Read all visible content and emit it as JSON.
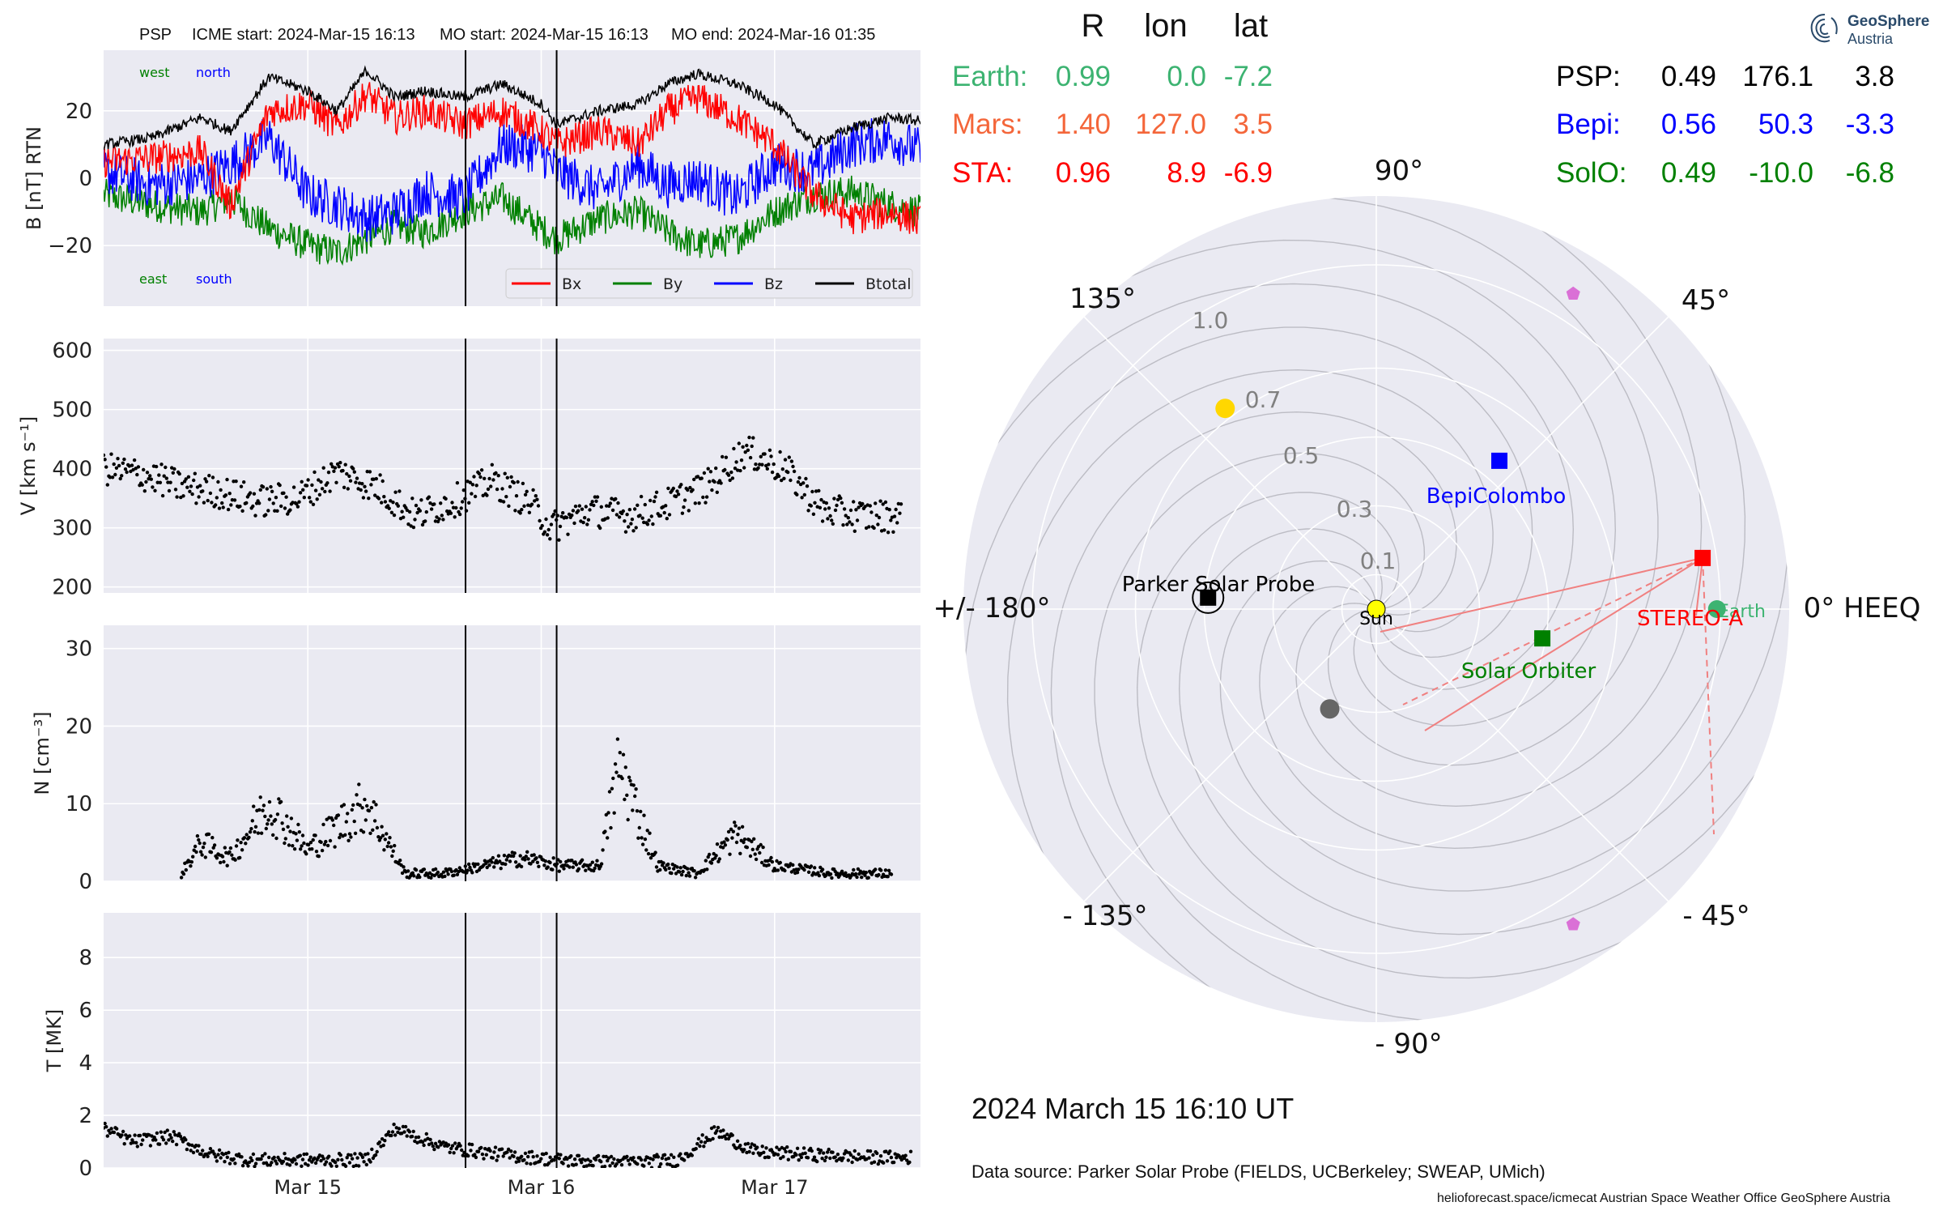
{
  "header": {
    "spacecraft": "PSP",
    "icme_start": "ICME start: 2024-Mar-15 16:13",
    "mo_start": "MO start: 2024-Mar-15 16:13",
    "mo_end": "MO end: 2024-Mar-16 01:35"
  },
  "table": {
    "columns": [
      "R",
      "lon",
      "lat"
    ],
    "rows_left": [
      {
        "name": "Earth:",
        "R": "0.99",
        "lon": "0.0",
        "lat": "-7.2",
        "color": "#3cb371"
      },
      {
        "name": "Mars:",
        "R": "1.40",
        "lon": "127.0",
        "lat": "3.5",
        "color": "#f4663a"
      },
      {
        "name": "STA:",
        "R": "0.96",
        "lon": "8.9",
        "lat": "-6.9",
        "color": "#ff0000"
      }
    ],
    "rows_right": [
      {
        "name": "PSP:",
        "R": "0.49",
        "lon": "176.1",
        "lat": "3.8",
        "color": "#000000"
      },
      {
        "name": "Bepi:",
        "R": "0.56",
        "lon": "50.3",
        "lat": "-3.3",
        "color": "#0000ff"
      },
      {
        "name": "SolO:",
        "R": "0.49",
        "lon": "-10.0",
        "lat": "-6.8",
        "color": "#008000"
      }
    ]
  },
  "logo": {
    "name": "GeoSphere",
    "sub": "Austria",
    "icon": "geosphere-swirl-icon"
  },
  "datetime": "2024 March 15  16:10 UT",
  "source": "Data source: Parker Solar Probe (FIELDS, UCBerkeley; SWEAP, UMich)",
  "credits": "helioforecast.space/icmecat   Austrian Space Weather Office   GeoSphere Austria",
  "chart_data": [
    {
      "type": "line",
      "ylabel": "B [nT] RTN",
      "xlim": [
        "2024-03-14 03:00",
        "2024-03-17 15:00"
      ],
      "ylim": [
        -38,
        38
      ],
      "yticks": [
        -20,
        0,
        20
      ],
      "xtick_labels": [
        "Mar 15",
        "Mar 16",
        "Mar 17"
      ],
      "xticks": [
        "2024-03-15 00:00",
        "2024-03-16 00:00",
        "2024-03-17 00:00"
      ],
      "vlines": [
        "2024-03-15 16:13",
        "2024-03-16 01:35"
      ],
      "annotations": {
        "west": "west",
        "north": "north",
        "east": "east",
        "south": "south"
      },
      "legend": [
        "Bx",
        "By",
        "Bz",
        "Btotal"
      ],
      "colors": {
        "Bx": "#ff0000",
        "By": "#008000",
        "Bz": "#0000ff",
        "Btotal": "#000000"
      },
      "series": [
        {
          "name": "Btotal",
          "x": [
            "2024-03-14 03:00",
            "2024-03-14 08:00",
            "2024-03-14 13:00",
            "2024-03-14 16:00",
            "2024-03-14 20:00",
            "2024-03-15 00:00",
            "2024-03-15 03:00",
            "2024-03-15 06:00",
            "2024-03-15 09:00",
            "2024-03-15 12:00",
            "2024-03-15 16:00",
            "2024-03-15 20:00",
            "2024-03-16 00:00",
            "2024-03-16 01:35",
            "2024-03-16 06:00",
            "2024-03-16 10:00",
            "2024-03-16 13:00",
            "2024-03-16 16:00",
            "2024-03-16 20:00",
            "2024-03-17 00:00",
            "2024-03-17 04:00",
            "2024-03-17 08:00",
            "2024-03-17 12:00",
            "2024-03-17 15:00"
          ],
          "values": [
            10,
            12,
            18,
            14,
            30,
            26,
            20,
            32,
            24,
            26,
            24,
            28,
            22,
            16,
            20,
            22,
            28,
            31,
            28,
            22,
            10,
            15,
            18,
            17
          ]
        },
        {
          "name": "Bx",
          "x": [
            "2024-03-14 03:00",
            "2024-03-14 08:00",
            "2024-03-14 13:00",
            "2024-03-14 16:00",
            "2024-03-14 20:00",
            "2024-03-15 00:00",
            "2024-03-15 03:00",
            "2024-03-15 06:00",
            "2024-03-15 09:00",
            "2024-03-15 12:00",
            "2024-03-15 16:00",
            "2024-03-15 20:00",
            "2024-03-16 00:00",
            "2024-03-16 01:35",
            "2024-03-16 06:00",
            "2024-03-16 10:00",
            "2024-03-16 13:00",
            "2024-03-16 16:00",
            "2024-03-16 20:00",
            "2024-03-17 00:00",
            "2024-03-17 04:00",
            "2024-03-17 08:00",
            "2024-03-17 12:00",
            "2024-03-17 15:00"
          ],
          "values": [
            5,
            6,
            8,
            -8,
            20,
            22,
            15,
            25,
            18,
            20,
            16,
            20,
            14,
            10,
            14,
            10,
            20,
            24,
            18,
            10,
            -5,
            -12,
            -10,
            -13
          ]
        },
        {
          "name": "By",
          "x": [
            "2024-03-14 03:00",
            "2024-03-14 08:00",
            "2024-03-14 13:00",
            "2024-03-14 16:00",
            "2024-03-14 20:00",
            "2024-03-15 00:00",
            "2024-03-15 03:00",
            "2024-03-15 06:00",
            "2024-03-15 09:00",
            "2024-03-15 12:00",
            "2024-03-15 16:00",
            "2024-03-15 20:00",
            "2024-03-16 00:00",
            "2024-03-16 01:35",
            "2024-03-16 06:00",
            "2024-03-16 10:00",
            "2024-03-16 13:00",
            "2024-03-16 16:00",
            "2024-03-16 20:00",
            "2024-03-17 00:00",
            "2024-03-17 04:00",
            "2024-03-17 08:00",
            "2024-03-17 12:00",
            "2024-03-17 15:00"
          ],
          "values": [
            -5,
            -8,
            -10,
            -6,
            -15,
            -20,
            -22,
            -18,
            -14,
            -16,
            -10,
            -6,
            -15,
            -18,
            -12,
            -10,
            -16,
            -20,
            -18,
            -10,
            -5,
            -4,
            -8,
            -10
          ]
        },
        {
          "name": "Bz",
          "x": [
            "2024-03-14 03:00",
            "2024-03-14 08:00",
            "2024-03-14 13:00",
            "2024-03-14 16:00",
            "2024-03-14 20:00",
            "2024-03-15 00:00",
            "2024-03-15 03:00",
            "2024-03-15 06:00",
            "2024-03-15 09:00",
            "2024-03-15 12:00",
            "2024-03-15 16:00",
            "2024-03-15 20:00",
            "2024-03-16 00:00",
            "2024-03-16 01:35",
            "2024-03-16 06:00",
            "2024-03-16 10:00",
            "2024-03-16 13:00",
            "2024-03-16 16:00",
            "2024-03-16 20:00",
            "2024-03-17 00:00",
            "2024-03-17 04:00",
            "2024-03-17 08:00",
            "2024-03-17 12:00",
            "2024-03-17 15:00"
          ],
          "values": [
            2,
            -2,
            0,
            4,
            12,
            -5,
            -8,
            -12,
            -10,
            -4,
            -6,
            10,
            8,
            2,
            -4,
            4,
            -2,
            0,
            -6,
            4,
            2,
            10,
            12,
            8
          ]
        }
      ]
    },
    {
      "type": "scatter",
      "ylabel": "V [km s$^{-1}$]",
      "xlim": [
        "2024-03-14 03:00",
        "2024-03-17 15:00"
      ],
      "ylim": [
        190,
        620
      ],
      "yticks": [
        200,
        300,
        400,
        500,
        600
      ],
      "vlines": [
        "2024-03-15 16:13",
        "2024-03-16 01:35"
      ],
      "series": [
        {
          "name": "V",
          "x": [
            "2024-03-14 03:00",
            "2024-03-14 07:00",
            "2024-03-14 11:00",
            "2024-03-14 15:00",
            "2024-03-14 19:00",
            "2024-03-14 23:00",
            "2024-03-15 03:00",
            "2024-03-15 07:00",
            "2024-03-15 11:00",
            "2024-03-15 15:00",
            "2024-03-15 19:00",
            "2024-03-15 23:00",
            "2024-03-16 01:00",
            "2024-03-16 05:00",
            "2024-03-16 09:00",
            "2024-03-16 13:00",
            "2024-03-16 17:00",
            "2024-03-16 21:00",
            "2024-03-17 01:00",
            "2024-03-17 05:00",
            "2024-03-17 09:00",
            "2024-03-17 13:00"
          ],
          "values": [
            400,
            390,
            370,
            360,
            345,
            350,
            395,
            370,
            320,
            345,
            380,
            340,
            300,
            330,
            320,
            340,
            370,
            430,
            400,
            330,
            320,
            320
          ]
        }
      ]
    },
    {
      "type": "scatter",
      "ylabel": "N [cm$^{-3}$]",
      "xlim": [
        "2024-03-14 03:00",
        "2024-03-17 15:00"
      ],
      "ylim": [
        0,
        33
      ],
      "yticks": [
        0,
        10,
        20,
        30
      ],
      "vlines": [
        "2024-03-15 16:13",
        "2024-03-16 01:35"
      ],
      "series": [
        {
          "name": "N",
          "x": [
            "2024-03-14 11:00",
            "2024-03-14 13:00",
            "2024-03-14 16:00",
            "2024-03-14 20:00",
            "2024-03-15 00:00",
            "2024-03-15 06:00",
            "2024-03-15 10:00",
            "2024-03-15 14:00",
            "2024-03-15 18:00",
            "2024-03-15 22:00",
            "2024-03-16 02:00",
            "2024-03-16 06:00",
            "2024-03-16 08:00",
            "2024-03-16 12:00",
            "2024-03-16 16:00",
            "2024-03-16 20:00",
            "2024-03-17 00:00",
            "2024-03-17 06:00",
            "2024-03-17 12:00"
          ],
          "values": [
            1,
            5,
            3,
            10,
            4,
            10,
            1,
            1,
            2,
            3,
            2,
            2,
            15,
            2,
            1,
            6,
            2,
            1,
            1
          ]
        }
      ]
    },
    {
      "type": "scatter",
      "ylabel": "T [MK]",
      "xlim": [
        "2024-03-14 03:00",
        "2024-03-17 15:00"
      ],
      "ylim": [
        0,
        9.7
      ],
      "yticks": [
        0,
        2,
        4,
        6,
        8
      ],
      "vlines": [
        "2024-03-15 16:13",
        "2024-03-16 01:35"
      ],
      "series": [
        {
          "name": "T",
          "x": [
            "2024-03-14 03:00",
            "2024-03-14 06:00",
            "2024-03-14 10:00",
            "2024-03-14 14:00",
            "2024-03-14 18:00",
            "2024-03-15 00:00",
            "2024-03-15 06:00",
            "2024-03-15 09:00",
            "2024-03-15 14:00",
            "2024-03-15 20:00",
            "2024-03-16 02:00",
            "2024-03-16 08:00",
            "2024-03-16 14:00",
            "2024-03-16 18:00",
            "2024-03-16 22:00",
            "2024-03-17 04:00",
            "2024-03-17 10:00",
            "2024-03-17 14:00"
          ],
          "values": [
            1.5,
            1.0,
            1.2,
            0.5,
            0.3,
            0.3,
            0.3,
            1.5,
            0.8,
            0.5,
            0.3,
            0.2,
            0.3,
            1.4,
            0.6,
            0.5,
            0.4,
            0.4
          ]
        }
      ]
    },
    {
      "type": "polar",
      "r_ticks": [
        0.1,
        0.3,
        0.5,
        0.7,
        1.0
      ],
      "r_tick_labels": [
        "0.1",
        "0.3",
        "0.5",
        "0.7",
        "1.0"
      ],
      "rmax": 1.2,
      "angle_labels": [
        {
          "deg": 0,
          "text": "0° HEEQ"
        },
        {
          "deg": 45,
          "text": "45°"
        },
        {
          "deg": 90,
          "text": "90°"
        },
        {
          "deg": 135,
          "text": "135°"
        },
        {
          "deg": 180,
          "text": "+/- 180°"
        },
        {
          "deg": -135,
          "text": "- 135°"
        },
        {
          "deg": -90,
          "text": "- 90°"
        },
        {
          "deg": -45,
          "text": "- 45°"
        }
      ],
      "bodies": [
        {
          "name": "Sun",
          "r": 0,
          "lon": 0,
          "color": "#ffff00",
          "marker": "circle"
        },
        {
          "name": "Earth",
          "r": 0.99,
          "lon": 0.0,
          "color": "#3cb371",
          "marker": "circle"
        },
        {
          "name": "STEREO-A",
          "r": 0.96,
          "lon": 8.9,
          "color": "#ff0000",
          "marker": "square"
        },
        {
          "name": "Parker Solar Probe",
          "r": 0.49,
          "lon": 176.1,
          "color": "#000000",
          "marker": "square"
        },
        {
          "name": "BepiColombo",
          "r": 0.56,
          "lon": 50.3,
          "color": "#0000ff",
          "marker": "square"
        },
        {
          "name": "Solar Orbiter",
          "r": 0.49,
          "lon": -10.0,
          "color": "#008000",
          "marker": "square"
        },
        {
          "name": "",
          "r": 0.73,
          "lon": 127.0,
          "color": "#ffd700",
          "marker": "circle"
        },
        {
          "name": "",
          "r": 0.32,
          "lon": -115.0,
          "color": "#666666",
          "marker": "circle"
        },
        {
          "name": "",
          "r": 1.08,
          "lon": 58.0,
          "color": "#da70d6",
          "marker": "pentagon"
        },
        {
          "name": "",
          "r": 1.08,
          "lon": -58.0,
          "color": "#da70d6",
          "marker": "pentagon"
        }
      ],
      "sta_lines_lon": [
        -16,
        -28,
        -42,
        -62
      ]
    }
  ]
}
